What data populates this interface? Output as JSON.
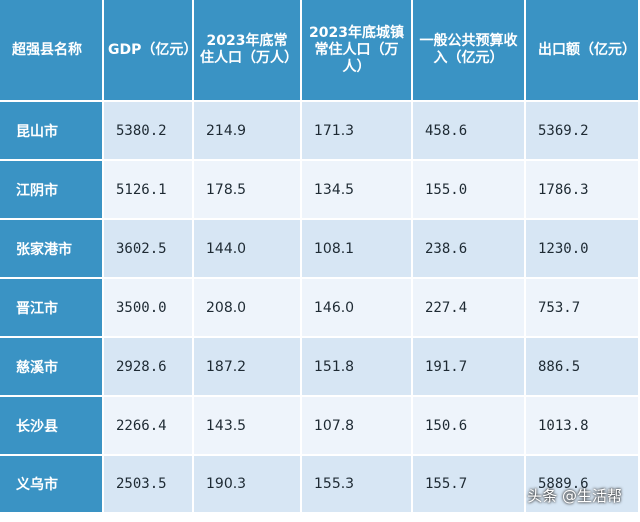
{
  "headers": [
    "超强县名称",
    "GDP（亿元）",
    "2023年底常住人口（万人）",
    "2023年底城镇常住人口（万人）",
    "一般公共预算收入（亿元）",
    "出口额（亿元）"
  ],
  "rows": [
    {
      "name": "昆山市",
      "gdp": "5380.2",
      "pop": "214.9",
      "urban": "171.3",
      "revenue": "458.6",
      "export": "5369.2"
    },
    {
      "name": "江阴市",
      "gdp": "5126.1",
      "pop": "178.5",
      "urban": "134.5",
      "revenue": "155.0",
      "export": "1786.3"
    },
    {
      "name": "张家港市",
      "gdp": "3602.5",
      "pop": "144.0",
      "urban": "108.1",
      "revenue": "238.6",
      "export": "1230.0"
    },
    {
      "name": "晋江市",
      "gdp": "3500.0",
      "pop": "208.0",
      "urban": "146.0",
      "revenue": "227.4",
      "export": "753.7"
    },
    {
      "name": "慈溪市",
      "gdp": "2928.6",
      "pop": "187.2",
      "urban": "151.8",
      "revenue": "191.7",
      "export": "886.5"
    },
    {
      "name": "长沙县",
      "gdp": "2266.4",
      "pop": "143.5",
      "urban": "107.8",
      "revenue": "150.6",
      "export": "1013.8"
    },
    {
      "name": "义乌市",
      "gdp": "2503.5",
      "pop": "190.3",
      "urban": "155.3",
      "revenue": "155.7",
      "export": "5889.6"
    }
  ],
  "watermark": "头条 @生活帮",
  "colors": {
    "header_bg": "#3a93c4",
    "row_odd": "#d7e6f4",
    "row_even": "#eef4fb"
  }
}
